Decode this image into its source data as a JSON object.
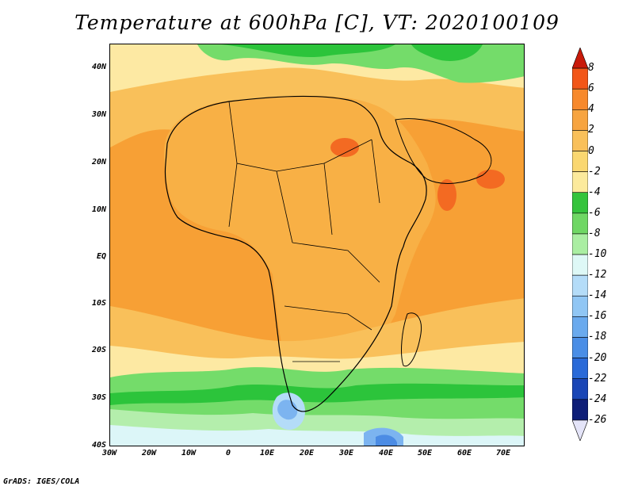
{
  "title": "Temperature at 600hPa [C], VT: 2020100109",
  "credit": "GrADS: IGES/COLA",
  "map": {
    "lat_labels": [
      "40N",
      "30N",
      "20N",
      "10N",
      "EQ",
      "10S",
      "20S",
      "30S",
      "40S"
    ],
    "lon_labels": [
      "30W",
      "20W",
      "10W",
      "0",
      "10E",
      "20E",
      "30E",
      "40E",
      "50E",
      "60E",
      "70E"
    ],
    "fill_colors": {
      "ocean_warm": "#f7a035",
      "land_warm": "#f8b045",
      "mild": "#fbd66a",
      "pale": "#fde9a3",
      "green_dark": "#2cc43b",
      "green": "#74dc6a",
      "green_light": "#b4eeac",
      "cyan_pale": "#dcf6f8",
      "blue_light": "#b4dcf8",
      "blue_mid": "#7cb4f0",
      "blue": "#4c8ce4",
      "hot": "#f36a22"
    }
  },
  "colorbar": {
    "labels": [
      "8",
      "6",
      "4",
      "2",
      "0",
      "-2",
      "-4",
      "-6",
      "-8",
      "-10",
      "-12",
      "-14",
      "-16",
      "-18",
      "-20",
      "-22",
      "-24",
      "-26"
    ],
    "colors": [
      "#c81a0a",
      "#f25618",
      "#f7892c",
      "#f7a440",
      "#f9c05a",
      "#fad770",
      "#fcea9c",
      "#35c43c",
      "#6fd764",
      "#aaeea2",
      "#def8f6",
      "#b4dcf8",
      "#90c6f4",
      "#6aaaee",
      "#4a8ee6",
      "#2a6ad8",
      "#1a46b6",
      "#0e1e78",
      "#e4e4f8"
    ]
  }
}
